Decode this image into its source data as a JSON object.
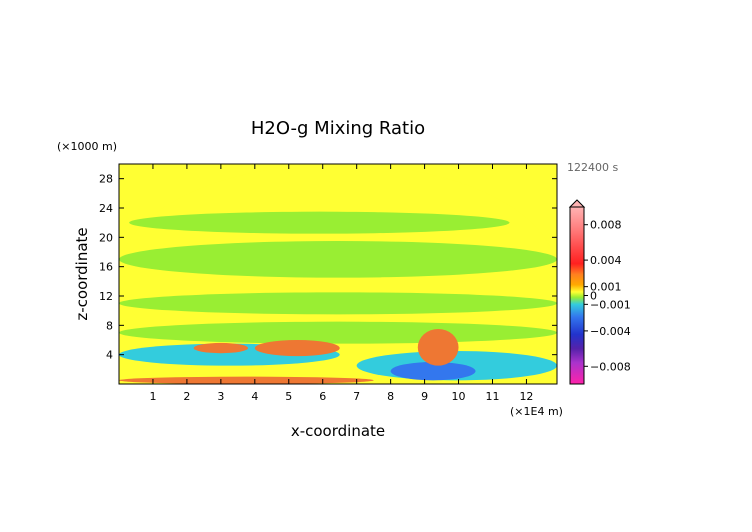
{
  "chart_data": {
    "type": "heatmap",
    "title": "H2O-g Mixing Ratio",
    "xlabel": "x-coordinate",
    "ylabel": "z-coordinate",
    "x_unit": "(×1E4 m)",
    "y_unit": "(×1000 m)",
    "time_label": "122400 s",
    "xlim": [
      0,
      12.9
    ],
    "ylim": [
      0,
      30
    ],
    "x_ticks": [
      1,
      2,
      3,
      4,
      5,
      6,
      7,
      8,
      9,
      10,
      11,
      12
    ],
    "x_tick_labels": [
      "1",
      "2",
      "3",
      "4",
      "5",
      "6",
      "7",
      "8",
      "9",
      "10",
      "11",
      "12"
    ],
    "y_ticks": [
      4,
      8,
      12,
      16,
      20,
      24,
      28
    ],
    "y_tick_labels": [
      "4",
      "8",
      "12",
      "16",
      "20",
      "24",
      "28"
    ],
    "colorbar": {
      "range": [
        -0.01,
        0.01
      ],
      "labels": [
        {
          "value": 0.008,
          "text": "0.008"
        },
        {
          "value": 0.004,
          "text": "0.004"
        },
        {
          "value": 0.001,
          "text": "0.001"
        },
        {
          "value": 0,
          "text": "0"
        },
        {
          "value": -0.001,
          "text": "−0.001"
        },
        {
          "value": -0.004,
          "text": "−0.004"
        },
        {
          "value": -0.008,
          "text": "−0.008"
        }
      ]
    },
    "regions": [
      {
        "level": "zero",
        "color": "#ffff33",
        "x": [
          0,
          12.9
        ],
        "y": [
          0,
          30
        ]
      },
      {
        "level": "slightly-negative",
        "color": "#99ee33",
        "x": [
          0.3,
          11.5
        ],
        "y": [
          20.5,
          23.5
        ]
      },
      {
        "level": "slightly-negative",
        "color": "#99ee33",
        "x": [
          0,
          12.9
        ],
        "y": [
          14.5,
          19.5
        ]
      },
      {
        "level": "slightly-negative",
        "color": "#99ee33",
        "x": [
          0,
          12.9
        ],
        "y": [
          9.5,
          12.5
        ]
      },
      {
        "level": "slightly-negative",
        "color": "#99ee33",
        "x": [
          0,
          12.9
        ],
        "y": [
          5.5,
          8.5
        ]
      },
      {
        "level": "negative",
        "color": "#33ccdd",
        "x": [
          0,
          6.5
        ],
        "y": [
          2.5,
          5.5
        ]
      },
      {
        "level": "negative",
        "color": "#33ccdd",
        "x": [
          7,
          12.9
        ],
        "y": [
          0.5,
          4.5
        ]
      },
      {
        "level": "more-negative",
        "color": "#3377ee",
        "x": [
          8,
          10.5
        ],
        "y": [
          0.5,
          3
        ]
      },
      {
        "level": "positive",
        "color": "#ee7733",
        "x": [
          2.2,
          3.8
        ],
        "y": [
          4.2,
          5.6
        ]
      },
      {
        "level": "positive",
        "color": "#ee7733",
        "x": [
          4,
          6.5
        ],
        "y": [
          3.8,
          6
        ]
      },
      {
        "level": "positive",
        "color": "#ee7733",
        "x": [
          8.8,
          10
        ],
        "y": [
          2.5,
          7.5
        ]
      },
      {
        "level": "positive",
        "color": "#ee7733",
        "x": [
          0,
          7.5
        ],
        "y": [
          0,
          1
        ]
      }
    ]
  }
}
